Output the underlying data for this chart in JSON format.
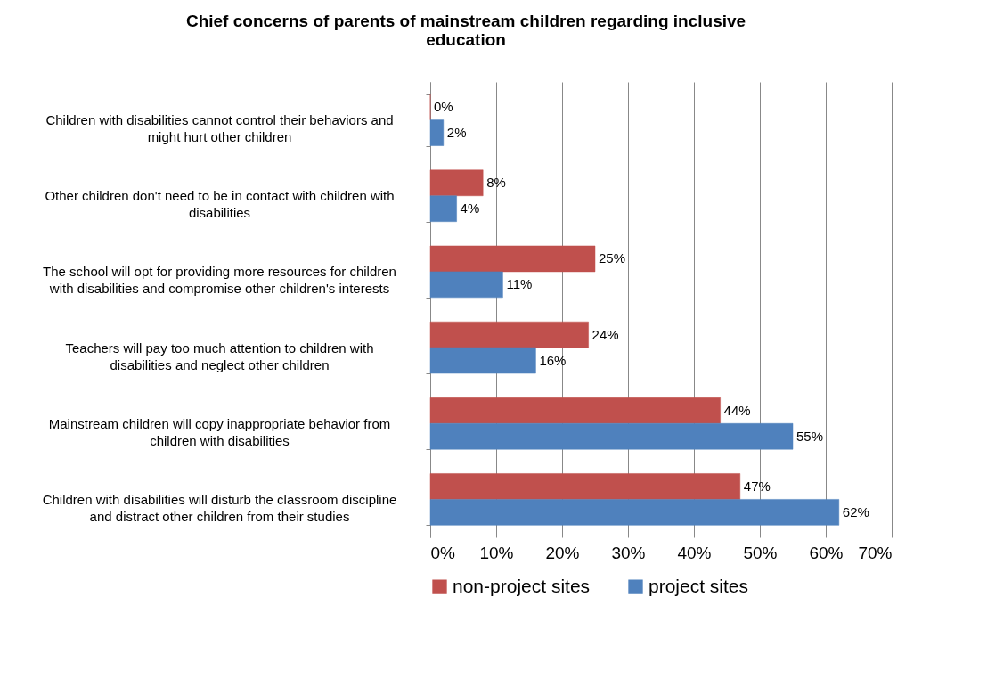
{
  "chart_data": {
    "type": "bar",
    "orientation": "horizontal",
    "title": "Chief concerns of parents of mainstream children regarding inclusive education",
    "categories": [
      "Children with disabilities cannot control their behaviors and might hurt other children",
      "Other children don't need to be in contact with children with disabilities",
      "The school will opt for providing more resources for children with disabilities and compromise other children's interests",
      "Teachers will pay too much attention to children with disabilities and neglect other children",
      "Mainstream children will copy inappropriate behavior from children with disabilities",
      "Children with disabilities will disturb the  classroom discipline and distract other children from their studies"
    ],
    "series": [
      {
        "name": "non-project sites",
        "color": "#c0504d",
        "values": [
          0,
          8,
          25,
          24,
          44,
          47
        ],
        "value_labels": [
          "0%",
          "8%",
          "25%",
          "24%",
          "44%",
          "47%"
        ]
      },
      {
        "name": "project sites",
        "color": "#4f81bd",
        "values": [
          2,
          4,
          11,
          16,
          55,
          62
        ],
        "value_labels": [
          "2%",
          "4%",
          "11%",
          "16%",
          "55%",
          "62%"
        ]
      }
    ],
    "xlim": [
      0,
      70
    ],
    "xticks": [
      {
        "value": 0,
        "label": "0%"
      },
      {
        "value": 10,
        "label": "10%"
      },
      {
        "value": 20,
        "label": "20%"
      },
      {
        "value": 30,
        "label": "30%"
      },
      {
        "value": 40,
        "label": "40%"
      },
      {
        "value": 50,
        "label": "50%"
      },
      {
        "value": 60,
        "label": "60%"
      },
      {
        "value": 70,
        "label": "70%"
      }
    ],
    "grid": "x",
    "legend": "bottom"
  }
}
